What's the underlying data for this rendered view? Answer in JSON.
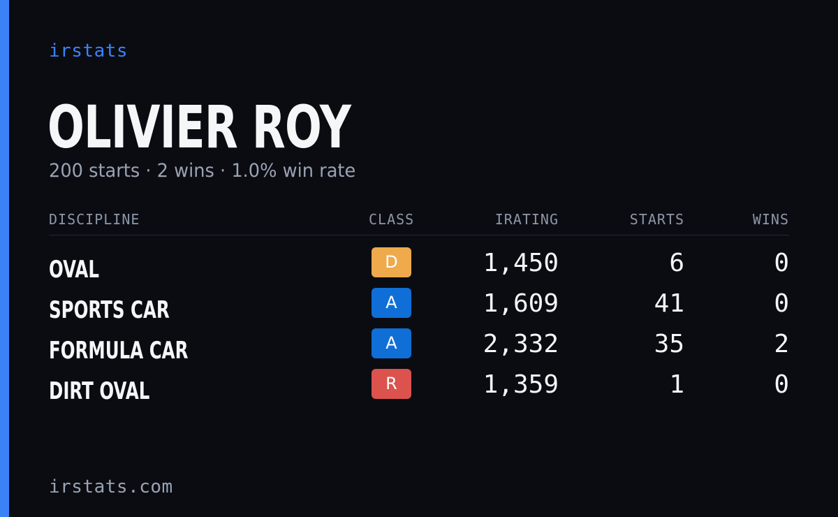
{
  "colors": {
    "background": "#0a0c12",
    "accent": "#3b82f6",
    "class_d": "#eeaa4b",
    "class_a": "#0f6fd6",
    "class_r": "#dc524d"
  },
  "brand": "irstats",
  "driver": {
    "name": "OLIVIER ROY",
    "summary": "200 starts · 2 wins · 1.0% win rate"
  },
  "table": {
    "headers": {
      "discipline": "DISCIPLINE",
      "class": "CLASS",
      "irating": "IRATING",
      "starts": "STARTS",
      "wins": "WINS"
    },
    "rows": [
      {
        "discipline": "OVAL",
        "class": "D",
        "irating": "1,450",
        "starts": "6",
        "wins": "0"
      },
      {
        "discipline": "SPORTS CAR",
        "class": "A",
        "irating": "1,609",
        "starts": "41",
        "wins": "0"
      },
      {
        "discipline": "FORMULA CAR",
        "class": "A",
        "irating": "2,332",
        "starts": "35",
        "wins": "2"
      },
      {
        "discipline": "DIRT OVAL",
        "class": "R",
        "irating": "1,359",
        "starts": "1",
        "wins": "0"
      }
    ]
  },
  "footer": "irstats.com"
}
